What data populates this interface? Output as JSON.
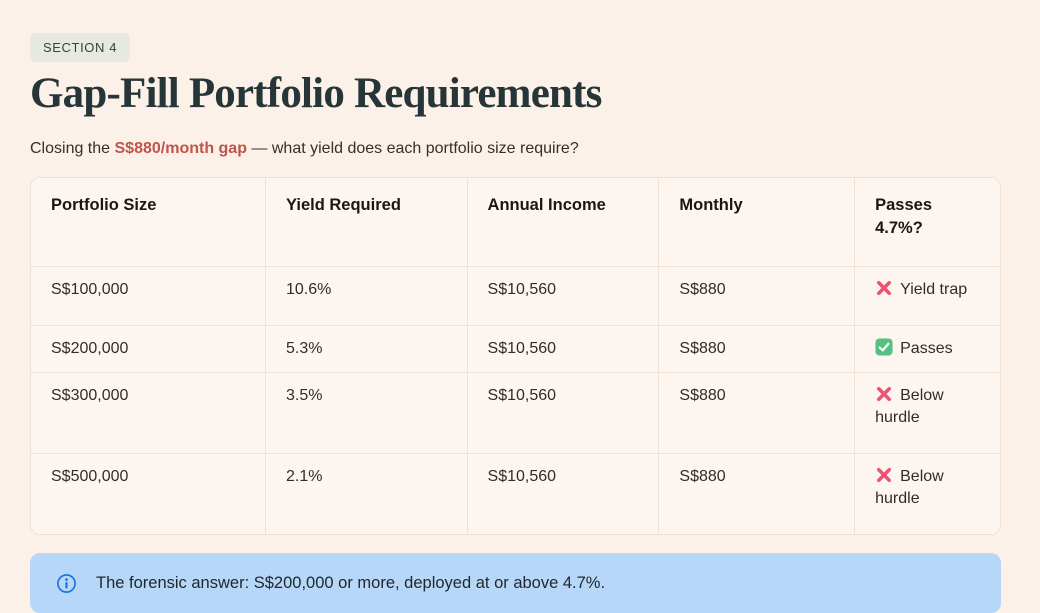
{
  "page": {
    "section_badge": "SECTION 4",
    "title": "Gap-Fill Portfolio Requirements",
    "subtitle_prefix": "Closing the ",
    "subtitle_highlight": "S$880/month gap",
    "subtitle_suffix": " — what yield does each portfolio size require?"
  },
  "table": {
    "headers": [
      "Portfolio Size",
      "Yield Required",
      "Annual Income",
      "Monthly",
      "Passes 4.7%?"
    ],
    "col_widths": [
      "24.2%",
      "20.8%",
      "19.8%",
      "20.2%",
      "15.0%"
    ],
    "rows": [
      {
        "portfolio_size": "S$100,000",
        "yield_required": "10.6%",
        "annual_income": "S$10,560",
        "monthly": "S$880",
        "status": {
          "icon": "cross-icon",
          "label": "Yield trap"
        }
      },
      {
        "portfolio_size": "S$200,000",
        "yield_required": "5.3%",
        "annual_income": "S$10,560",
        "monthly": "S$880",
        "status": {
          "icon": "check-icon",
          "label": "Passes"
        }
      },
      {
        "portfolio_size": "S$300,000",
        "yield_required": "3.5%",
        "annual_income": "S$10,560",
        "monthly": "S$880",
        "status": {
          "icon": "cross-icon",
          "label": "Below hurdle"
        }
      },
      {
        "portfolio_size": "S$500,000",
        "yield_required": "2.1%",
        "annual_income": "S$10,560",
        "monthly": "S$880",
        "status": {
          "icon": "cross-icon",
          "label": "Below hurdle"
        }
      }
    ]
  },
  "callout": {
    "icon": "info-icon",
    "text": "The forensic answer: S$200,000 or more, deployed at or above 4.7%."
  },
  "colors": {
    "page_bg": "#fcf1e9",
    "heading": "#263538",
    "accent_red": "#c0544a",
    "cross_pink": "#ec5475",
    "check_green": "#53c27e",
    "check_mark": "#ffffff",
    "callout_bg": "#b7d7f8",
    "info_blue": "#1a6fd8",
    "table_bg": "#fdf6f0",
    "table_border": "#f0e1d7",
    "badge_bg": "#e7e9e1"
  }
}
